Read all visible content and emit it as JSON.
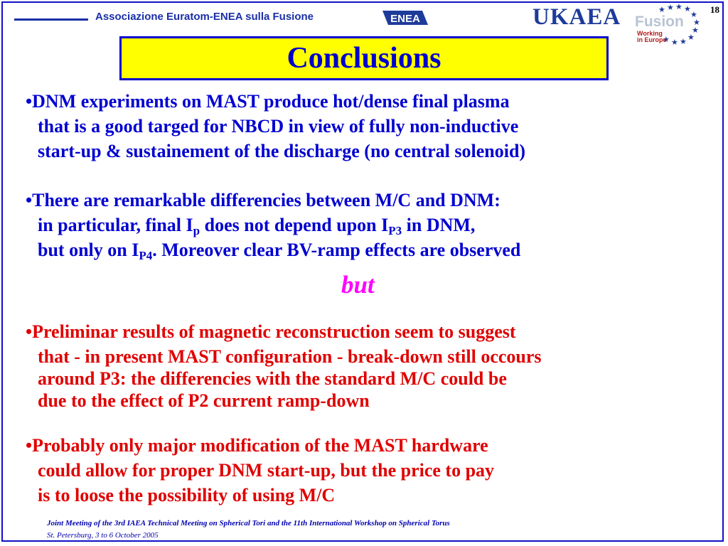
{
  "header": {
    "organization": "Associazione Euratom-ENEA sulla Fusione",
    "enea_logo": "ENEA",
    "ukaea_logo": "UKAEA",
    "fusion_logo": "Fusion",
    "fusion_logo_sub1": "Working",
    "fusion_logo_sub2": "in Europe",
    "slide_number": "18"
  },
  "title": "Conclusions",
  "bullets": [
    {
      "color": "#0000d0",
      "lines": [
        "DNM experiments on MAST produce hot/dense final plasma",
        "that is a good targed for NBCD in view of fully non-inductive",
        "start-up & sustainement of the discharge (no central solenoid)"
      ]
    },
    {
      "color": "#0000d0",
      "line1": "There are remarkable differencies between M/C and DNM:",
      "line2_a": "in particular, final I",
      "line2_sub1": "p",
      "line2_b": " does not depend upon I",
      "line2_sub2": "P3",
      "line2_c": " in DNM,",
      "line3_a": "but only on I",
      "line3_sub": "P4",
      "line3_b": ". Moreover clear BV-ramp effects are observed"
    },
    {
      "color": "#e00000",
      "lines": [
        "Preliminar results of magnetic reconstruction seem to suggest",
        "that - in present MAST configuration - break-down still occours",
        "around P3: the differencies with the standard M/C could be",
        "due to the effect of P2 current ramp-down"
      ]
    },
    {
      "color": "#e00000",
      "lines": [
        "Probably only major modification of the MAST hardware",
        "could allow for proper DNM start-up, but the price to pay",
        "is to loose the possibility of using M/C"
      ]
    }
  ],
  "connector": "but",
  "footer": {
    "line1": "Joint Meeting of the 3rd IAEA Technical Meeting on Spherical Tori and the 11th International Workshop on Spherical Torus",
    "line2": "St. Petersburg, 3 to 6 October 2005"
  },
  "colors": {
    "title_bg": "#ffff00",
    "title_text": "#0000cc",
    "frame": "#1010c8",
    "connector": "#ff00ff"
  }
}
